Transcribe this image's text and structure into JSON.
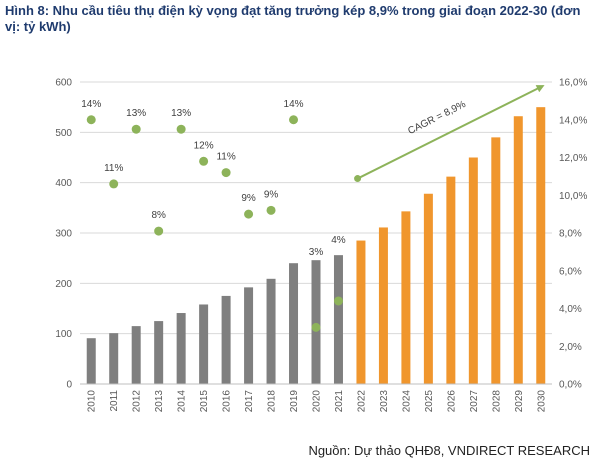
{
  "title": "Hình 8: Nhu cầu tiêu thụ điện kỳ vọng đạt tăng trưởng kép 8,9% trong giai đoạn 2022-30 (đơn vị: tỷ kWh)",
  "source": "Nguồn: Dự thảo QHĐ8, VNDIRECT RESEARCH",
  "colors": {
    "actual_bar": "#7f7f7f",
    "forecast_bar": "#f0962d",
    "growth_dot": "#8db35a",
    "cagr_arrow": "#8db35a",
    "gridline": "#d9d9d9"
  },
  "chart_data": {
    "type": "bar",
    "categories": [
      "2010",
      "2011",
      "2012",
      "2013",
      "2014",
      "2015",
      "2016",
      "2017",
      "2018",
      "2019",
      "2020",
      "2021",
      "2022",
      "2023",
      "2024",
      "2025",
      "2026",
      "2027",
      "2028",
      "2029",
      "2030"
    ],
    "series": [
      {
        "values": [
          91,
          101,
          115,
          125,
          141,
          158,
          175,
          192,
          209,
          240,
          246,
          256,
          285,
          311,
          343,
          378,
          412,
          450,
          490,
          532,
          550
        ],
        "axis": "left",
        "actual_years": 12
      },
      {
        "type": "scatter",
        "axis": "right",
        "values": [
          14.0,
          10.6,
          13.5,
          8.1,
          13.5,
          11.8,
          11.2,
          9.0,
          9.2,
          14.0,
          3.0,
          4.4
        ],
        "labels": [
          "14%",
          "11%",
          "13%",
          "8%",
          "13%",
          "12%",
          "11%",
          "9%",
          "9%",
          "14%",
          "3%",
          "4%"
        ]
      }
    ],
    "ylim": [
      0,
      600
    ],
    "yticks": [
      "0",
      "100",
      "200",
      "300",
      "400",
      "500",
      "600"
    ],
    "y2lim": [
      0,
      16
    ],
    "y2ticks": [
      "0,0%",
      "2,0%",
      "4,0%",
      "6,0%",
      "8,0%",
      "10,0%",
      "12,0%",
      "14,0%",
      "16,0%"
    ],
    "annotation": "CAGR = 8,9%",
    "grid": true
  }
}
